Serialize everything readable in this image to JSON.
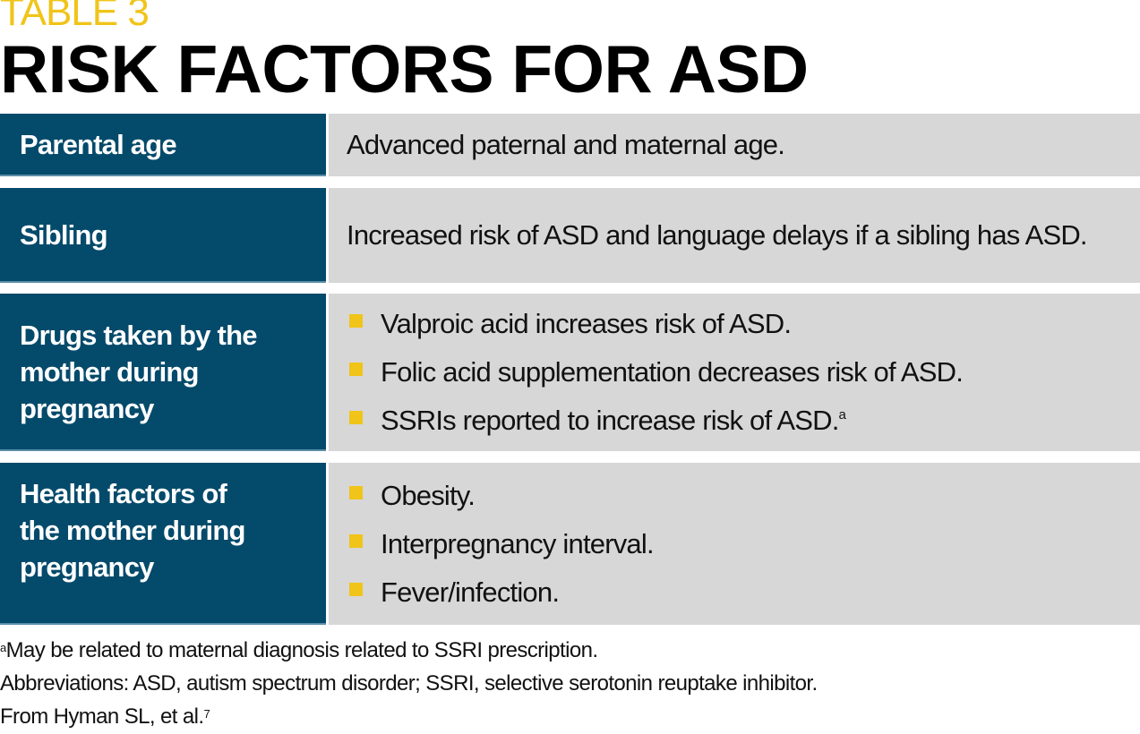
{
  "label": "TABLE 3",
  "title": "RISK FACTORS FOR ASD",
  "rows": [
    {
      "factor": "Parental age",
      "text": "Advanced paternal and maternal age."
    },
    {
      "factor": "Sibling",
      "text": "Increased risk of ASD and language delays if a sibling has ASD."
    },
    {
      "factor": "Drugs taken by the mother during pregnancy",
      "bullets": [
        "Valproic acid increases risk of ASD.",
        "Folic acid supplementation decreases risk of ASD.",
        "SSRIs reported to increase risk of ASD."
      ],
      "bullet_sup": "a"
    },
    {
      "factor": "Health factors of the mother during pregnancy",
      "bullets": [
        "Obesity.",
        "Interpregnancy interval.",
        "Fever/infection."
      ]
    }
  ],
  "footnotes": {
    "a_marker": "a",
    "a_text": "May be related to maternal diagnosis related to SSRI prescription.",
    "abbreviations": "Abbreviations: ASD, autism spectrum disorder; SSRI, selective serotonin reuptake inhibitor.",
    "source": "From Hyman SL, et al.",
    "source_ref": "7"
  },
  "colors": {
    "header_blue": "#044a6b",
    "cell_gray": "#d7d7d7",
    "accent_yellow": "#f0c419"
  }
}
